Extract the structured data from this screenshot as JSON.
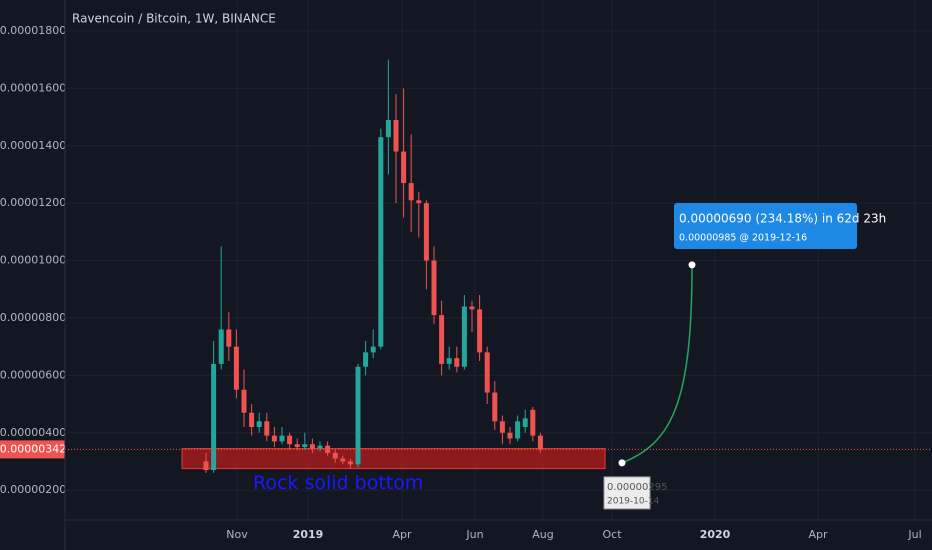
{
  "chart_data": {
    "type": "candlestick",
    "title": "Ravencoin / Bitcoin, 1W, BINANCE",
    "categories": [
      null,
      null,
      null,
      null,
      null,
      null,
      null,
      null,
      null,
      null,
      null,
      null,
      null,
      null,
      null,
      null,
      null,
      null,
      null,
      null,
      null,
      null,
      null,
      null,
      null,
      null,
      null,
      null,
      null,
      null,
      null,
      null,
      null,
      null,
      null,
      null,
      null,
      null,
      null,
      null,
      null,
      null,
      null,
      null,
      null
    ],
    "open": [
      3e-06,
      2.7e-06,
      6.4e-06,
      7.6e-06,
      7e-06,
      5.5e-06,
      4.7e-06,
      4.2e-06,
      4.4e-06,
      3.9e-06,
      3.7e-06,
      3.9e-06,
      3.6e-06,
      3.5e-06,
      3.6e-06,
      3.45e-06,
      3.55e-06,
      3.3e-06,
      3.1e-06,
      3e-06,
      2.9e-06,
      6.3e-06,
      6.8e-06,
      7e-06,
      1.43e-05,
      1.49e-05,
      1.38e-05,
      1.27e-05,
      1.21e-05,
      1.2e-05,
      1e-05,
      8.1e-06,
      6.4e-06,
      6.6e-06,
      6.3e-06,
      8.4e-06,
      8.3e-06,
      6.8e-06,
      5.4e-06,
      4.4e-06,
      4e-06,
      3.8e-06,
      4.2e-06,
      4.8e-06,
      3.9e-06
    ],
    "high": [
      3.3e-06,
      7.2e-06,
      1.05e-05,
      8.2e-06,
      7.6e-06,
      6.2e-06,
      5e-06,
      4.7e-06,
      4.7e-06,
      4.2e-06,
      4.2e-06,
      4e-06,
      3.8e-06,
      4e-06,
      3.8e-06,
      3.7e-06,
      3.7e-06,
      3.4e-06,
      3.2e-06,
      3.1e-06,
      6.4e-06,
      7.2e-06,
      7.6e-06,
      1.46e-05,
      1.7e-05,
      1.58e-05,
      1.6e-05,
      1.44e-05,
      1.24e-05,
      1.21e-05,
      1.05e-05,
      8.6e-06,
      7e-06,
      7e-06,
      8.8e-06,
      8.6e-06,
      8.8e-06,
      7e-06,
      5.8e-06,
      4.6e-06,
      4.2e-06,
      4.6e-06,
      4.8e-06,
      4.9e-06,
      4e-06
    ],
    "low": [
      2.6e-06,
      2.6e-06,
      6.2e-06,
      6.5e-06,
      5.2e-06,
      4.2e-06,
      3.9e-06,
      4e-06,
      3.7e-06,
      3.5e-06,
      3.6e-06,
      3.4e-06,
      3.4e-06,
      3.4e-06,
      3.3e-06,
      3.35e-06,
      3.2e-06,
      2.95e-06,
      2.9e-06,
      2.75e-06,
      2.8e-06,
      6e-06,
      6.6e-06,
      6.9e-06,
      1.3e-05,
      1.2e-05,
      1.15e-05,
      1.1e-05,
      1.08e-05,
      9e-06,
      7.8e-06,
      6e-06,
      6.2e-06,
      6.1e-06,
      6.2e-06,
      7.5e-06,
      6.5e-06,
      5e-06,
      4.1e-06,
      3.6e-06,
      3.6e-06,
      3.7e-06,
      4e-06,
      3.7e-06,
      3.3e-06
    ],
    "close": [
      2.7e-06,
      6.4e-06,
      7.6e-06,
      7e-06,
      5.5e-06,
      4.7e-06,
      4.2e-06,
      4.4e-06,
      3.9e-06,
      3.7e-06,
      3.9e-06,
      3.6e-06,
      3.5e-06,
      3.6e-06,
      3.45e-06,
      3.55e-06,
      3.3e-06,
      3.1e-06,
      3e-06,
      2.9e-06,
      6.3e-06,
      6.8e-06,
      7e-06,
      1.43e-05,
      1.49e-05,
      1.38e-05,
      1.27e-05,
      1.21e-05,
      1.2e-05,
      1e-05,
      8.1e-06,
      6.4e-06,
      6.6e-06,
      6.3e-06,
      8.4e-06,
      8.3e-06,
      6.8e-06,
      5.4e-06,
      4.4e-06,
      4e-06,
      3.8e-06,
      4.4e-06,
      4.5e-06,
      3.9e-06,
      3.42e-06
    ],
    "up_color": "#26a69a",
    "down_color": "#ef5350",
    "ylim": [
      9.6e-07,
      1.908e-05
    ],
    "yticks": [
      {
        "value": 2e-06,
        "label": "0.00000200"
      },
      {
        "value": 4e-06,
        "label": "0.00000400"
      },
      {
        "value": 6e-06,
        "label": "0.00000600"
      },
      {
        "value": 8e-06,
        "label": "0.00000800"
      },
      {
        "value": 1e-05,
        "label": "0.00001000"
      },
      {
        "value": 1.2e-05,
        "label": "0.00001200"
      },
      {
        "value": 1.4e-05,
        "label": "0.00001400"
      },
      {
        "value": 1.6e-05,
        "label": "0.00001600"
      },
      {
        "value": 1.8e-05,
        "label": "0.00001800"
      }
    ],
    "x_labels": [
      "Nov",
      "2019",
      "Apr",
      "Jun",
      "Aug",
      "Oct",
      "2020",
      "Apr",
      "Jul"
    ],
    "grid": true,
    "last_price": {
      "value": 3.42e-06,
      "label": "0.00000342"
    },
    "support_zone": {
      "label": "Rock solid bottom",
      "top": 3.45e-06,
      "bottom": 2.75e-06,
      "color": "#b71c1c"
    },
    "projection": {
      "summary": "0.00000690 (234.18%) in 62d 23h",
      "target": "0.00000985 @ 2019-12-16",
      "start_price": {
        "value": 2.95e-06,
        "label": "0.00000295"
      },
      "start_date": "2019-10-14",
      "end_price": 9.85e-06,
      "color": "#1e88e5"
    }
  }
}
